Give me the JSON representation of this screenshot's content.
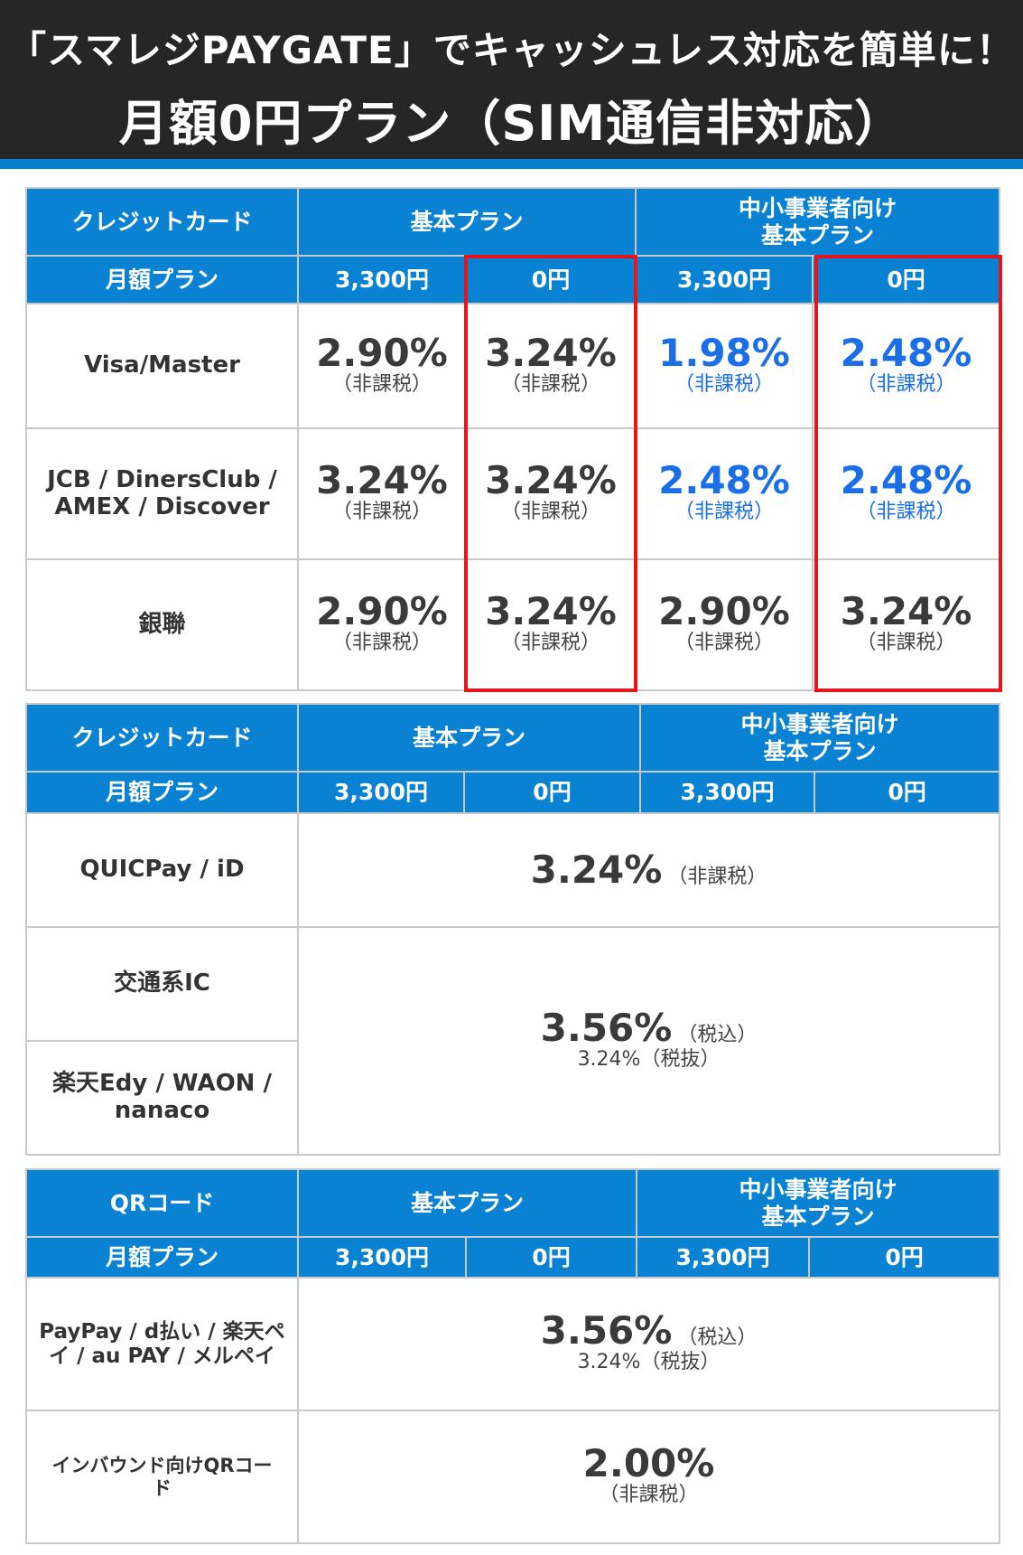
{
  "header": {
    "line1": "「スマレジPAYGATE」でキャッシュレス対応を簡単に！",
    "line2": "月額0円プラン（SIM通信非対応）"
  },
  "colors": {
    "header_bg": "#262626",
    "accent_blue": "#0a82d4",
    "rate_blue": "#1a6ee8",
    "highlight_red": "#e8141c"
  },
  "credit": {
    "title": "クレジットカード",
    "plan_basic": "基本プラン",
    "plan_sme_line1": "中小事業者向け",
    "plan_sme_line2": "基本プラン",
    "monthly_label": "月額プラン",
    "fee_3300": "3,300円",
    "fee_0": "0円",
    "rows": [
      {
        "label": "Visa/Master",
        "rates": [
          "2.90%",
          "3.24%",
          "1.98%",
          "2.48%"
        ],
        "notes": [
          "（非課税）",
          "（非課税）",
          "（非課税）",
          "（非課税）"
        ]
      },
      {
        "label_line1": "JCB / DinersClub /",
        "label_line2": "AMEX / Discover",
        "rates": [
          "3.24%",
          "3.24%",
          "2.48%",
          "2.48%"
        ],
        "notes": [
          "（非課税）",
          "（非課税）",
          "（非課税）",
          "（非課税）"
        ]
      },
      {
        "label": "銀聯",
        "rates": [
          "2.90%",
          "3.24%",
          "2.90%",
          "3.24%"
        ],
        "notes": [
          "（非課税）",
          "（非課税）",
          "（非課税）",
          "（非課税）"
        ]
      }
    ]
  },
  "emoney": {
    "title": "クレジットカード",
    "plan_basic": "基本プラン",
    "plan_sme_line1": "中小事業者向け",
    "plan_sme_line2": "基本プラン",
    "monthly_label": "月額プラン",
    "fee_3300": "3,300円",
    "fee_0": "0円",
    "row1_label": "QUICPay / iD",
    "row1_rate": "3.24%",
    "row1_note": "（非課税）",
    "row2_label": "交通系IC",
    "row3_label_line1": "楽天Edy / WAON /",
    "row3_label_line2": "nanaco",
    "row23_rate": "3.56%",
    "row23_note": "（税込）",
    "row23_sub": "3.24%（税抜）"
  },
  "qr": {
    "title": "QRコード",
    "plan_basic": "基本プラン",
    "plan_sme_line1": "中小事業者向け",
    "plan_sme_line2": "基本プラン",
    "monthly_label": "月額プラン",
    "fee_3300": "3,300円",
    "fee_0": "0円",
    "row1_label_line1": "PayPay / d払い / 楽天ペ",
    "row1_label_line2": "イ / au PAY / メルペイ",
    "row1_rate": "3.56%",
    "row1_note": "（税込）",
    "row1_sub": "3.24%（税抜）",
    "row2_label_line1": "インバウンド向けQRコー",
    "row2_label_line2": "ド",
    "row2_rate": "2.00%",
    "row2_note": "（非課税）"
  }
}
